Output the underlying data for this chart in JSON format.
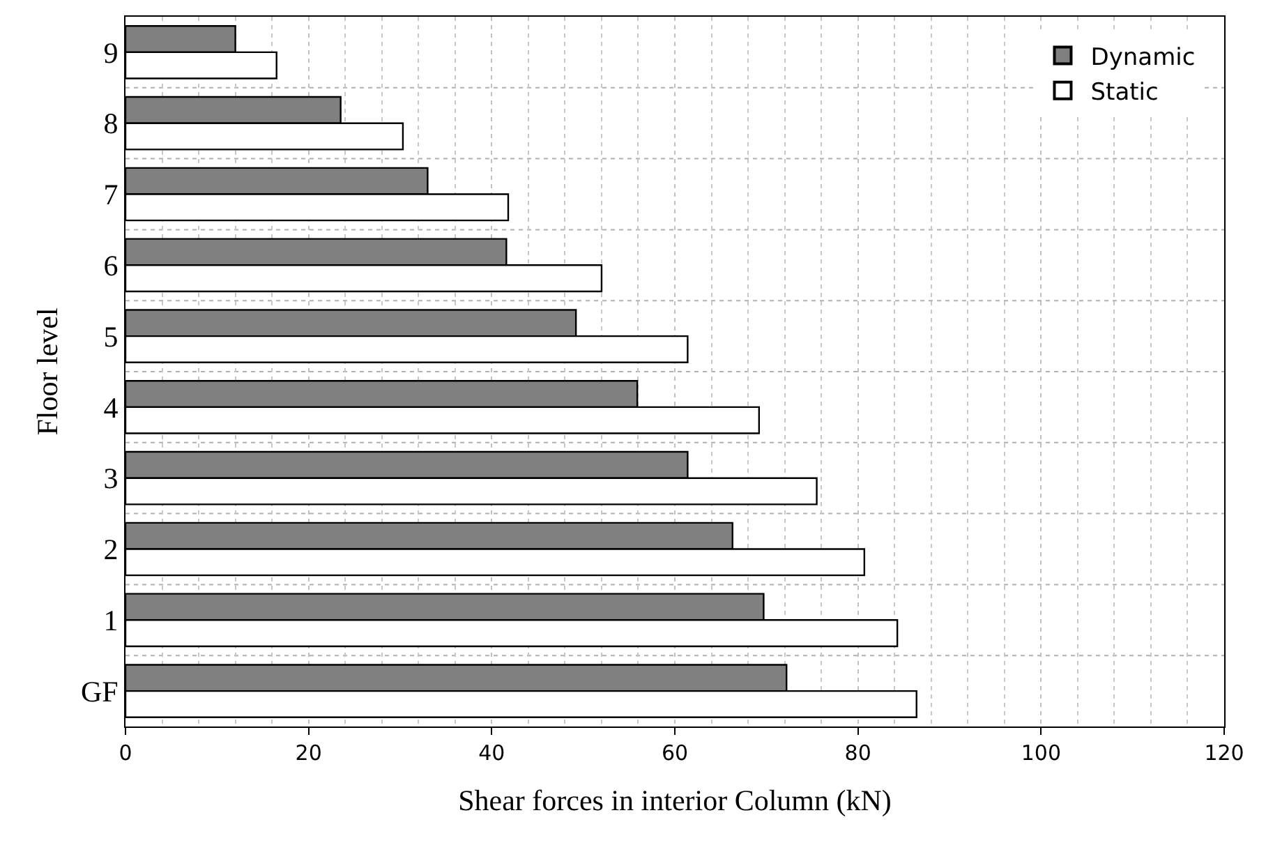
{
  "chart_data": {
    "type": "bar",
    "orientation": "horizontal",
    "xlabel": "Shear forces in interior Column (kN)",
    "ylabel": "Floor level",
    "categories": [
      "9",
      "8",
      "7",
      "6",
      "5",
      "4",
      "3",
      "2",
      "1",
      "GF"
    ],
    "series": [
      {
        "name": "Dynamic",
        "color": "#808080",
        "values": [
          12.0,
          23.5,
          33.0,
          41.6,
          49.2,
          55.9,
          61.4,
          66.3,
          69.7,
          72.2
        ]
      },
      {
        "name": "Static",
        "color": "#ffffff",
        "values": [
          16.5,
          30.3,
          41.8,
          52.0,
          61.4,
          69.2,
          75.5,
          80.7,
          84.3,
          86.4
        ]
      }
    ],
    "xlim": [
      0,
      120
    ],
    "xticks": [
      0,
      20,
      40,
      60,
      80,
      100,
      120
    ],
    "grid": true,
    "legend": "top right"
  }
}
